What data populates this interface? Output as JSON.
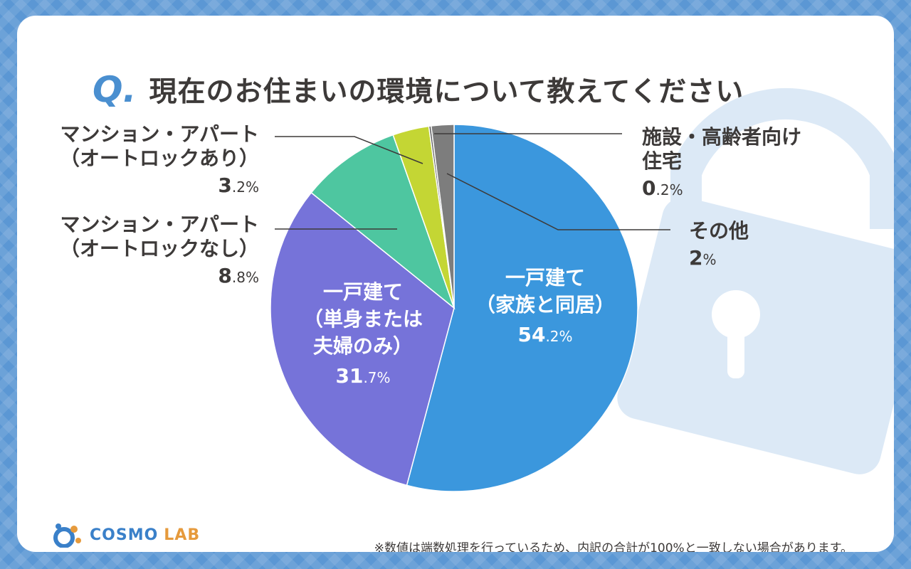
{
  "title": {
    "q_mark": "Q.",
    "text": "現在のお住まいの環境について教えてください"
  },
  "footnote": "※数値は端数処理を行っているため、内訳の合計が100%と一致しない場合があります。",
  "logo": {
    "main": "COSMO",
    "sub": "LAB",
    "icon": "cosmo-lab-logo-icon"
  },
  "chart_data": {
    "type": "pie",
    "unit": "%",
    "slices": [
      {
        "label_lines": [
          "一戸建て",
          "（家族と同居）"
        ],
        "value": 54.2,
        "value_text": "54",
        "value_dec": ".2%",
        "color": "#3b97dd"
      },
      {
        "label_lines": [
          "一戸建て",
          "（単身または",
          "夫婦のみ）"
        ],
        "value": 31.7,
        "value_text": "31",
        "value_dec": ".7%",
        "color": "#7673d9"
      },
      {
        "label_lines": [
          "マンション・アパート",
          "（オートロックなし）"
        ],
        "value": 8.8,
        "value_text": "8",
        "value_dec": ".8%",
        "color": "#4ec6a0"
      },
      {
        "label_lines": [
          "マンション・アパート",
          "（オートロックあり）"
        ],
        "value": 3.2,
        "value_text": "3",
        "value_dec": ".2%",
        "color": "#c4d634"
      },
      {
        "label_lines": [
          "施設・高齢者向け",
          "住宅"
        ],
        "value": 0.2,
        "value_text": "0",
        "value_dec": ".2%",
        "color": "#606060"
      },
      {
        "label_lines": [
          "その他"
        ],
        "value": 2,
        "value_text": "2",
        "value_dec": "%",
        "color": "#7d7d7d"
      }
    ]
  }
}
